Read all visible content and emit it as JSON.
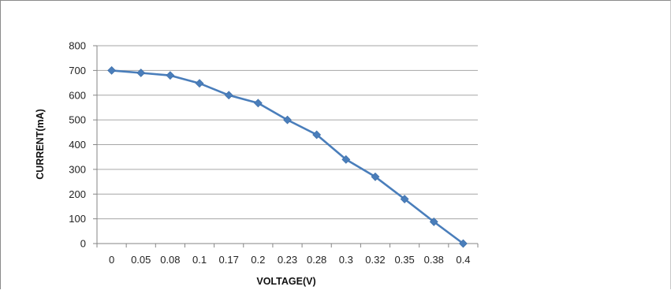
{
  "chart_data": {
    "type": "line",
    "xlabel": "VOLTAGE(V)",
    "ylabel": "CURRENT(mA)",
    "categories": [
      "0",
      "0.05",
      "0.08",
      "0.1",
      "0.17",
      "0.2",
      "0.23",
      "0.28",
      "0.3",
      "0.32",
      "0.35",
      "0.38",
      "0.4"
    ],
    "series": [
      {
        "values": [
          700,
          690,
          680,
          648,
          600,
          568,
          500,
          440,
          340,
          270,
          180,
          88,
          0
        ]
      }
    ],
    "ylim": [
      0,
      800
    ],
    "yticks": [
      0,
      100,
      200,
      300,
      400,
      500,
      600,
      700,
      800
    ],
    "grid": "horizontal",
    "marker": "diamond",
    "colors": {
      "line": "#4a7ebb",
      "grid": "#a6a6a6",
      "axis": "#868686"
    }
  }
}
